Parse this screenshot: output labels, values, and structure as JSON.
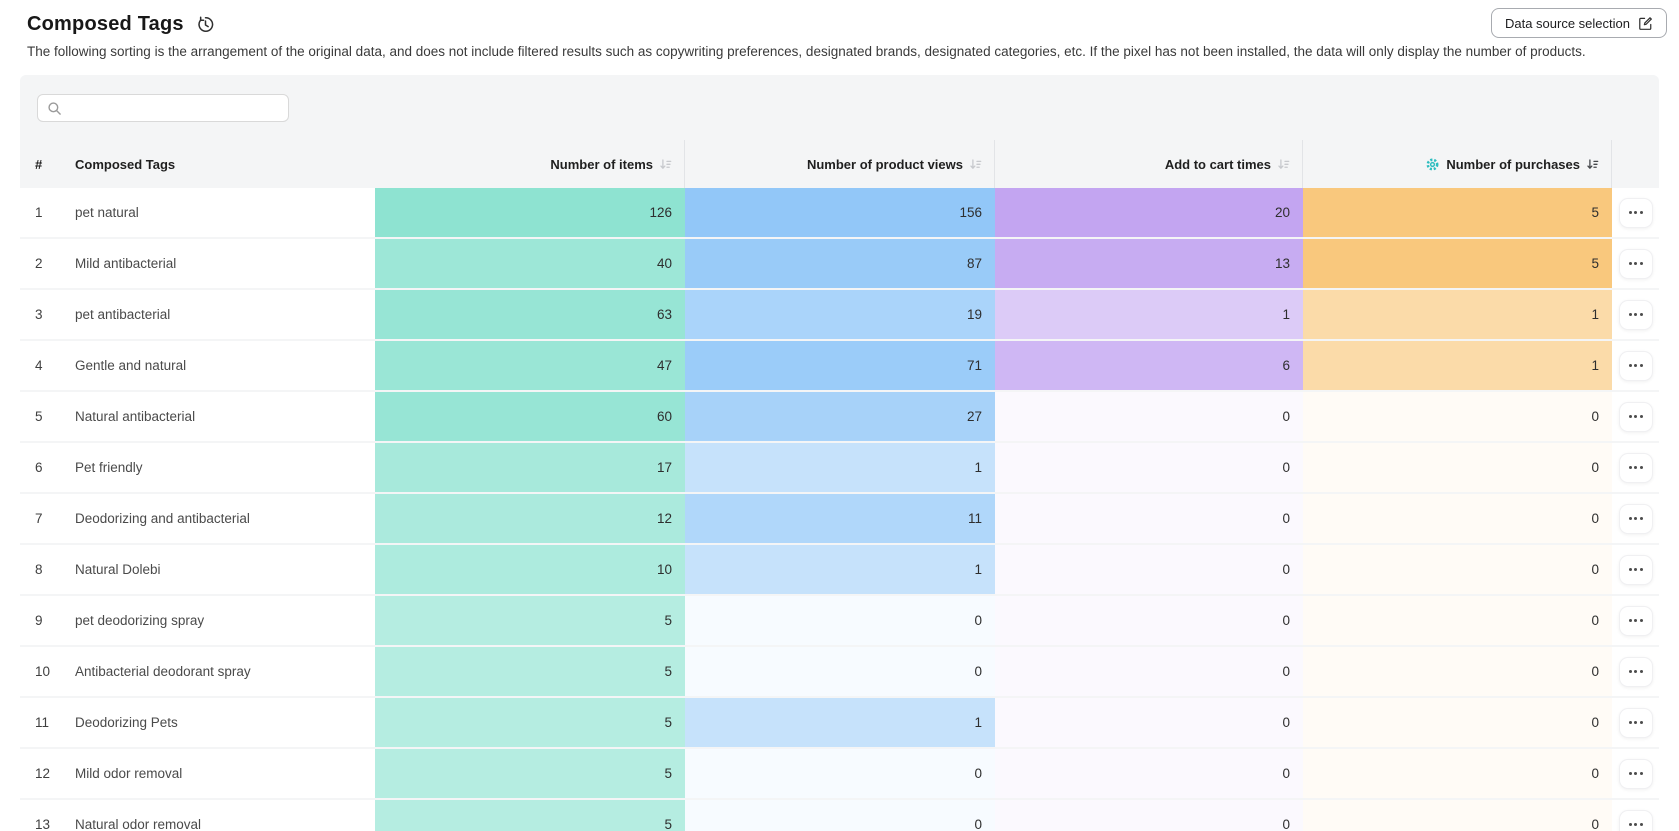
{
  "page": {
    "title": "Composed Tags",
    "description": "The following sorting is the arrangement of the original data, and does not include filtered results such as copywriting preferences, designated brands, designated categories, etc. If the pixel has not been installed, the data will only display the number of products."
  },
  "toolbar": {
    "data_source_button_label": "Data source selection"
  },
  "search": {
    "placeholder": "",
    "value": ""
  },
  "table": {
    "columns": [
      {
        "label": "#"
      },
      {
        "label": "Composed Tags"
      },
      {
        "label": "Number of items",
        "sortable": true,
        "sort_active": false,
        "color": "#8ee3d1"
      },
      {
        "label": "Number of product views",
        "sortable": true,
        "sort_active": false,
        "color": "#92c7f8"
      },
      {
        "label": "Add to cart times",
        "sortable": true,
        "sort_active": false,
        "color": "#c3a5f1"
      },
      {
        "label": "Number of purchases",
        "sortable": true,
        "sort_active": true,
        "gear_icon": true,
        "color": "#f9c87d"
      }
    ],
    "rows": [
      {
        "index": 1,
        "tag": "pet natural",
        "items": 126,
        "views": 156,
        "cart": 20,
        "purchases": 5
      },
      {
        "index": 2,
        "tag": "Mild antibacterial",
        "items": 40,
        "views": 87,
        "cart": 13,
        "purchases": 5
      },
      {
        "index": 3,
        "tag": "pet antibacterial",
        "items": 63,
        "views": 19,
        "cart": 1,
        "purchases": 1
      },
      {
        "index": 4,
        "tag": "Gentle and natural",
        "items": 47,
        "views": 71,
        "cart": 6,
        "purchases": 1
      },
      {
        "index": 5,
        "tag": "Natural antibacterial",
        "items": 60,
        "views": 27,
        "cart": 0,
        "purchases": 0
      },
      {
        "index": 6,
        "tag": "Pet friendly",
        "items": 17,
        "views": 1,
        "cart": 0,
        "purchases": 0
      },
      {
        "index": 7,
        "tag": "Deodorizing and antibacterial",
        "items": 12,
        "views": 11,
        "cart": 0,
        "purchases": 0
      },
      {
        "index": 8,
        "tag": "Natural Dolebi",
        "items": 10,
        "views": 1,
        "cart": 0,
        "purchases": 0
      },
      {
        "index": 9,
        "tag": "pet deodorizing spray",
        "items": 5,
        "views": 0,
        "cart": 0,
        "purchases": 0
      },
      {
        "index": 10,
        "tag": "Antibacterial deodorant spray",
        "items": 5,
        "views": 0,
        "cart": 0,
        "purchases": 0
      },
      {
        "index": 11,
        "tag": "Deodorizing Pets",
        "items": 5,
        "views": 1,
        "cart": 0,
        "purchases": 0
      },
      {
        "index": 12,
        "tag": "Mild odor removal",
        "items": 5,
        "views": 0,
        "cart": 0,
        "purchases": 0
      },
      {
        "index": 13,
        "tag": "Natural odor removal",
        "items": 5,
        "views": 0,
        "cart": 0,
        "purchases": 0
      }
    ]
  },
  "icons": {
    "title_action": "history-icon",
    "data_source_button": "edit-icon",
    "search": "search-icon",
    "purchases_header": "gear-icon",
    "sort": "sort-descending-icon",
    "row_action": "ellipsis-icon"
  },
  "colors": {
    "gear_accent": "#2cbdbf",
    "panel_bg": "#f4f5f6"
  }
}
